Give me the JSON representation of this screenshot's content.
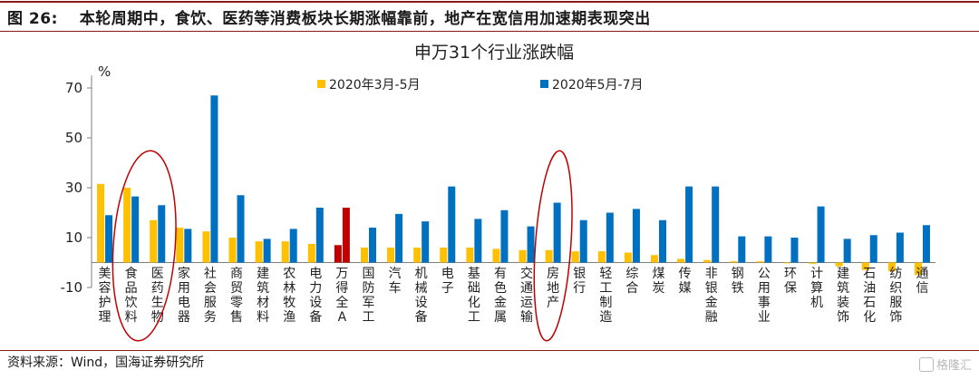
{
  "header": {
    "figure_title": "图 26:　 本轮周期中，食饮、医药等消费板块长期涨幅靠前，地产在宽信用加速期表现突出"
  },
  "footer": {
    "source": "资料来源：Wind，国海证券研究所",
    "watermark": "格隆汇"
  },
  "chart_data": {
    "type": "bar",
    "title": "申万31个行业涨跌幅",
    "ylabel": "%",
    "ylim": [
      -10,
      75
    ],
    "yticks": [
      -10,
      10,
      30,
      50,
      70
    ],
    "grid": false,
    "legend_position": "top-left",
    "categories": [
      "美容护理",
      "食品饮料",
      "医药生物",
      "家用电器",
      "社会服务",
      "商贸零售",
      "建筑材料",
      "农林牧渔",
      "电力设备",
      "万得全A",
      "国防军工",
      "汽车",
      "机械设备",
      "电子",
      "基础化工",
      "有色金属",
      "交通运输",
      "房地产",
      "银行",
      "轻工制造",
      "综合",
      "煤炭",
      "传媒",
      "非银金融",
      "钢铁",
      "公用事业",
      "环保",
      "计算机",
      "建筑装饰",
      "石油石化",
      "纺织服饰",
      "通信"
    ],
    "series": [
      {
        "name": "2020年3月-5月",
        "color": "#ffc000",
        "highlight_color": "#c00000",
        "values": [
          31.5,
          30,
          17,
          14,
          12.5,
          10,
          8.5,
          8.5,
          7.5,
          7,
          6,
          6,
          6,
          6,
          6,
          5.5,
          5,
          5,
          4.5,
          4.5,
          4,
          3,
          1.5,
          1,
          0.5,
          0.5,
          0,
          -0.5,
          -1.5,
          -3,
          -3.5,
          -5
        ]
      },
      {
        "name": "2020年5月-7月",
        "color": "#0070c0",
        "highlight_color": "#c00000",
        "values": [
          19,
          26.5,
          23,
          13.5,
          67,
          27,
          9.5,
          13.5,
          22,
          22,
          14,
          19.5,
          16.5,
          30.5,
          17.5,
          21,
          14.5,
          24,
          17,
          20,
          21.5,
          17,
          30.5,
          30.5,
          10.5,
          10.5,
          10,
          22.5,
          9.5,
          11,
          12,
          15
        ]
      }
    ],
    "highlight_category": "万得全A",
    "annotations": [
      {
        "type": "circle",
        "categories": [
          "食品饮料",
          "医药生物"
        ],
        "color": "#c00000"
      },
      {
        "type": "circle",
        "categories": [
          "房地产"
        ],
        "color": "#c00000"
      }
    ]
  }
}
